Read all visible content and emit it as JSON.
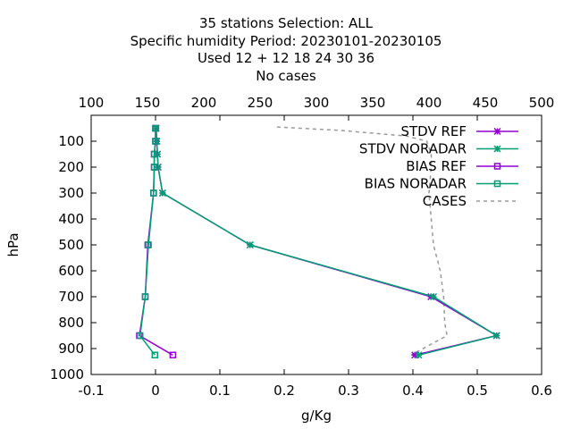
{
  "chart_data": {
    "type": "line",
    "title_lines": [
      "35 stations Selection: ALL",
      "Specific humidity  Period: 20230101-20230105",
      "Used  12 + 12 18 24 30 36",
      "No cases"
    ],
    "xlabel": "g/Kg",
    "ylabel": "hPa",
    "xlim": [
      -0.1,
      0.6
    ],
    "x_ticks": [
      "-0.1",
      "0",
      "0.1",
      "0.2",
      "0.3",
      "0.4",
      "0.5",
      "0.6"
    ],
    "x2lim": [
      100,
      500
    ],
    "x2_ticks": [
      "100",
      "150",
      "200",
      "250",
      "300",
      "350",
      "400",
      "450",
      "500"
    ],
    "ylim": [
      1000,
      0
    ],
    "y_ticks": [
      "100",
      "200",
      "300",
      "400",
      "500",
      "600",
      "700",
      "800",
      "900",
      "1000"
    ],
    "legend_position": "top-right",
    "series": [
      {
        "name": "STDV REF",
        "color": "#9400d3",
        "marker": "star",
        "points": [
          [
            0.001,
            50
          ],
          [
            0.002,
            100
          ],
          [
            0.003,
            150
          ],
          [
            0.004,
            200
          ],
          [
            0.011,
            300
          ],
          [
            0.147,
            500
          ],
          [
            0.428,
            700
          ],
          [
            0.53,
            850
          ],
          [
            0.403,
            925
          ]
        ]
      },
      {
        "name": "STDV NORADAR",
        "color": "#009e73",
        "marker": "star",
        "points": [
          [
            0.001,
            50
          ],
          [
            0.002,
            100
          ],
          [
            0.003,
            150
          ],
          [
            0.004,
            200
          ],
          [
            0.011,
            300
          ],
          [
            0.147,
            500
          ],
          [
            0.432,
            700
          ],
          [
            0.53,
            850
          ],
          [
            0.409,
            925
          ]
        ]
      },
      {
        "name": "BIAS REF",
        "color": "#9400d3",
        "marker": "square",
        "points": [
          [
            0.0,
            50
          ],
          [
            0.0,
            100
          ],
          [
            -0.002,
            150
          ],
          [
            -0.002,
            200
          ],
          [
            -0.003,
            300
          ],
          [
            -0.012,
            500
          ],
          [
            -0.016,
            700
          ],
          [
            -0.025,
            850
          ],
          [
            0.027,
            925
          ]
        ]
      },
      {
        "name": "BIAS NORADAR",
        "color": "#009e73",
        "marker": "square",
        "points": [
          [
            0.0,
            50
          ],
          [
            0.0,
            100
          ],
          [
            -0.002,
            150
          ],
          [
            -0.002,
            200
          ],
          [
            -0.003,
            300
          ],
          [
            -0.011,
            500
          ],
          [
            -0.016,
            700
          ],
          [
            -0.024,
            850
          ],
          [
            -0.001,
            925
          ]
        ]
      },
      {
        "name": "CASES",
        "color": "#999999",
        "marker": "none",
        "dashed": true,
        "axis": "x2",
        "points": [
          [
            265,
            45
          ],
          [
            320,
            58
          ],
          [
            380,
            80
          ],
          [
            398,
            100
          ],
          [
            402,
            150
          ],
          [
            402,
            200
          ],
          [
            400,
            300
          ],
          [
            404,
            500
          ],
          [
            410,
            600
          ],
          [
            413,
            700
          ],
          [
            414,
            800
          ],
          [
            416,
            850
          ],
          [
            384,
            925
          ]
        ]
      }
    ]
  }
}
